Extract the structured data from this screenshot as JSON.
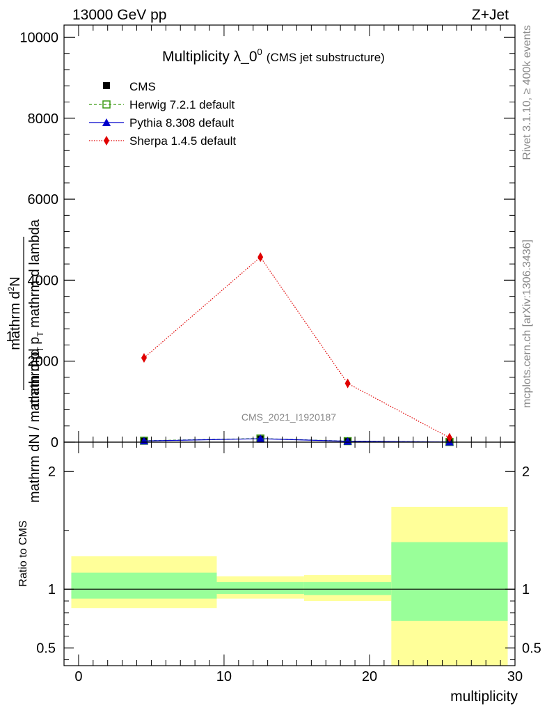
{
  "header": {
    "energy_label": "13000 GeV pp",
    "process_label": "Z+Jet"
  },
  "side_labels": {
    "rivet": "Rivet 3.1.10, ≥ 400k events",
    "mcplots": "mcplots.cern.ch [arXiv:1306.3436]"
  },
  "analysis_id": "CMS_2021_I1920187",
  "colors": {
    "cms": "#000000",
    "herwig": "#3b9a13",
    "pythia": "#0000cc",
    "sherpa": "#e00000",
    "band_outer": "#ffff99",
    "band_inner": "#99ff99"
  },
  "chart_data": [
    {
      "type": "line",
      "title": "Multiplicity λ_0",
      "title_sup": "0",
      "subtitle": "(CMS jet substructure)",
      "xlabel": "",
      "ylabel_numer_top": "mathrm d",
      "ylabel_numer_sup": "2",
      "ylabel_numer_bottom": "N",
      "ylabel_denom": "mathrm d p",
      "ylabel_denom_sub": "T",
      "ylabel_denom_tail": " mathrm d lambda",
      "ylabel_prefactor": "1",
      "ylabel_prefactor_denom": "mathrm dN / mathrm d p",
      "ylabel_prefactor_denom_sub": "T",
      "xlim": [
        -1,
        30
      ],
      "ylim": [
        0,
        10300
      ],
      "yticks": [
        0,
        2000,
        4000,
        6000,
        8000,
        10000
      ],
      "ytick_labels": [
        "0",
        "2000",
        "4000",
        "6000",
        "8000",
        "10000"
      ],
      "legend": [
        {
          "name": "CMS",
          "marker": "square-filled"
        },
        {
          "name": "Herwig 7.2.1 default",
          "marker": "square-open",
          "line": "dashed"
        },
        {
          "name": "Pythia 8.308 default",
          "marker": "triangle",
          "line": "solid"
        },
        {
          "name": "Sherpa 1.4.5 default",
          "marker": "diamond",
          "line": "dotted"
        }
      ],
      "series": [
        {
          "name": "CMS",
          "x": [
            4.5,
            12.5,
            18.5,
            25.5
          ],
          "values": [
            30,
            75,
            20,
            3
          ]
        },
        {
          "name": "Herwig 7.2.1 default",
          "x": [
            4.5,
            12.5,
            18.5,
            25.5
          ],
          "values": [
            35,
            90,
            25,
            4
          ]
        },
        {
          "name": "Pythia 8.308 default",
          "x": [
            4.5,
            12.5,
            18.5,
            25.5
          ],
          "values": [
            30,
            85,
            22,
            4
          ]
        },
        {
          "name": "Sherpa 1.4.5 default",
          "x": [
            4.5,
            12.5,
            18.5,
            25.5
          ],
          "values": [
            2080,
            4570,
            1450,
            110
          ]
        }
      ]
    },
    {
      "type": "area",
      "title": "",
      "xlabel": "multiplicity",
      "ylabel": "Ratio to CMS",
      "xlim": [
        -1,
        30
      ],
      "ylim": [
        0.35,
        2.25
      ],
      "xticks": [
        0,
        10,
        20,
        30
      ],
      "xtick_labels": [
        "0",
        "10",
        "20",
        "30"
      ],
      "yticks": [
        0.5,
        1,
        2
      ],
      "ytick_labels": [
        "0.5",
        "1",
        "2"
      ],
      "reference_line": 1,
      "bands": [
        {
          "x_low": -0.5,
          "x_high": 9.5,
          "outer": [
            0.84,
            1.28
          ],
          "inner": [
            0.92,
            1.14
          ]
        },
        {
          "x_low": 9.5,
          "x_high": 15.5,
          "outer": [
            0.92,
            1.11
          ],
          "inner": [
            0.96,
            1.06
          ]
        },
        {
          "x_low": 15.5,
          "x_high": 21.5,
          "outer": [
            0.9,
            1.12
          ],
          "inner": [
            0.95,
            1.06
          ]
        },
        {
          "x_low": 21.5,
          "x_high": 29.5,
          "outer": [
            0.35,
            1.7
          ],
          "inner": [
            0.73,
            1.4
          ]
        }
      ]
    }
  ]
}
